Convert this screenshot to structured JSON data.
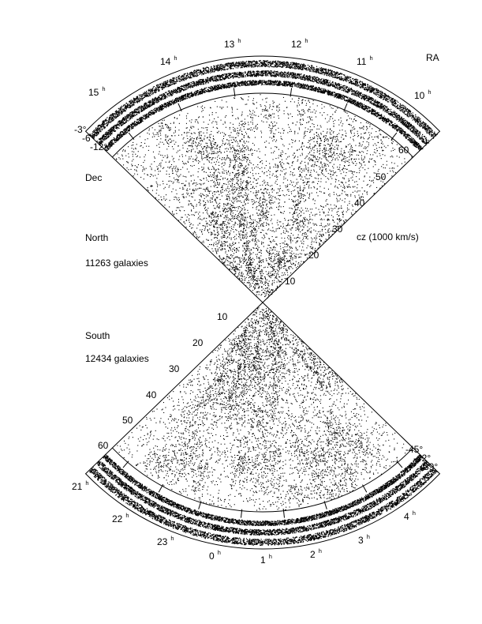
{
  "north": {
    "label": "North",
    "count": "11263 galaxies",
    "ra_labels": [
      {
        "hour": "15",
        "unit": "h"
      },
      {
        "hour": "14",
        "unit": "h"
      },
      {
        "hour": "13",
        "unit": "h"
      },
      {
        "hour": "12",
        "unit": "h"
      },
      {
        "hour": "11",
        "unit": "h"
      },
      {
        "hour": "10",
        "unit": "h"
      }
    ],
    "dec_labels": [
      "-3°",
      "-6°",
      "-12°"
    ],
    "cz_labels": [
      "10",
      "20",
      "30",
      "40",
      "50",
      "60"
    ]
  },
  "south": {
    "label": "South",
    "count": "12434 galaxies",
    "ra_labels": [
      {
        "hour": "21",
        "unit": "h"
      },
      {
        "hour": "22",
        "unit": "h"
      },
      {
        "hour": "23",
        "unit": "h"
      },
      {
        "hour": "0",
        "unit": "h"
      },
      {
        "hour": "1",
        "unit": "h"
      },
      {
        "hour": "2",
        "unit": "h"
      },
      {
        "hour": "3",
        "unit": "h"
      },
      {
        "hour": "4",
        "unit": "h"
      }
    ],
    "dec_labels": [
      "-45°",
      "-42°",
      "-39°"
    ],
    "cz_labels": [
      "10",
      "20",
      "30",
      "40",
      "50",
      "60"
    ]
  },
  "axis_labels": {
    "ra": "RA",
    "dec": "Dec",
    "cz": "cz (1000 km/s)"
  },
  "colors": {
    "ink": "#000000",
    "paper": "#ffffff"
  }
}
